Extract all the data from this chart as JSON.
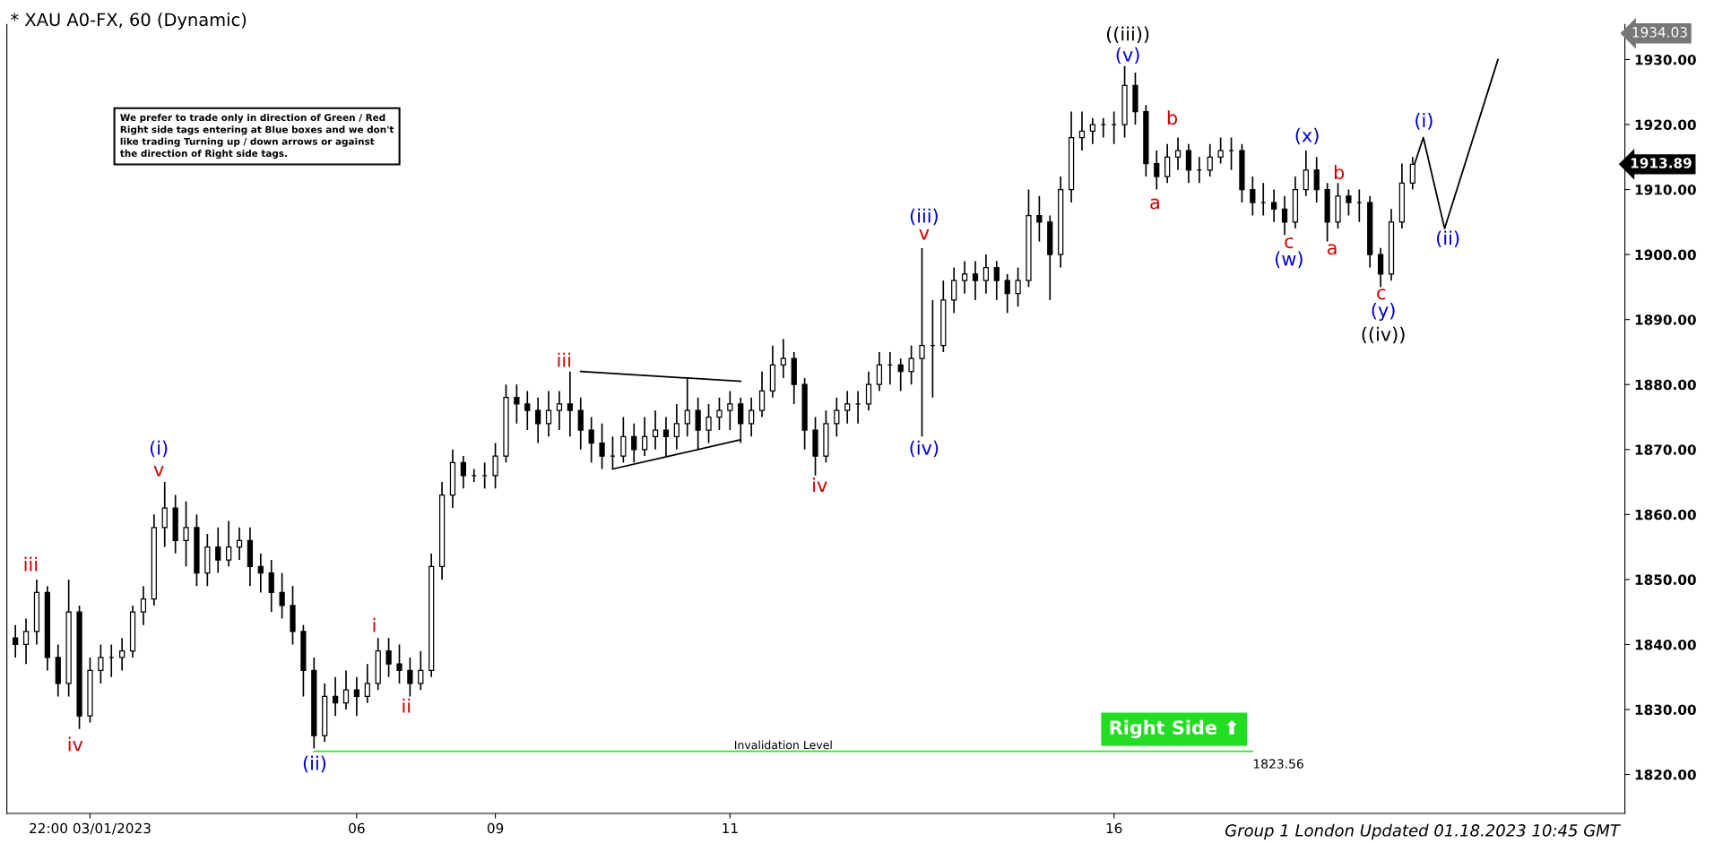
{
  "chart_data": {
    "type": "candlestick",
    "title": "* XAU A0-FX, 60 (Dynamic)",
    "categories": [
      null,
      null,
      null,
      null,
      null,
      null,
      null,
      "22:00 03/01/2023",
      null,
      null,
      null,
      null,
      null,
      null,
      null,
      null,
      null,
      null,
      null,
      null,
      null,
      null,
      null,
      null,
      null,
      null,
      null,
      null,
      null,
      null,
      null,
      null,
      "06",
      null,
      null,
      null,
      null,
      null,
      null,
      null,
      null,
      null,
      null,
      null,
      null,
      "09",
      null,
      null,
      null,
      null,
      null,
      null,
      null,
      null,
      null,
      null,
      null,
      null,
      null,
      null,
      null,
      null,
      null,
      null,
      null,
      null,
      null,
      "11",
      null,
      null,
      null,
      null,
      null,
      null,
      null,
      null,
      null,
      null,
      null,
      null,
      null,
      null,
      null,
      null,
      null,
      null,
      null,
      null,
      null,
      null,
      null,
      null,
      null,
      null,
      null,
      null,
      null,
      null,
      null,
      null,
      null,
      null,
      null,
      "16",
      null,
      null,
      null,
      null,
      null,
      null,
      null,
      null,
      null,
      null,
      null,
      null,
      null,
      null,
      null,
      null,
      null,
      null,
      null,
      null,
      null,
      null,
      null,
      null,
      null,
      null,
      null,
      null,
      null,
      null,
      null,
      null,
      null,
      null,
      null,
      null,
      null,
      null,
      null,
      null,
      null,
      null,
      null,
      null,
      null,
      null,
      null
    ],
    "ohlc": [
      [
        1841,
        1843,
        1838,
        1840
      ],
      [
        1840,
        1844,
        1837,
        1842
      ],
      [
        1842,
        1850,
        1840,
        1848
      ],
      [
        1848,
        1849,
        1836,
        1838
      ],
      [
        1838,
        1840,
        1832,
        1834
      ],
      [
        1834,
        1850,
        1832,
        1845
      ],
      [
        1845,
        1846,
        1827,
        1829
      ],
      [
        1829,
        1838,
        1828,
        1836
      ],
      [
        1836,
        1840,
        1834,
        1838
      ],
      [
        1838,
        1840,
        1835,
        1838
      ],
      [
        1838,
        1841,
        1836,
        1839
      ],
      [
        1839,
        1846,
        1838,
        1845
      ],
      [
        1845,
        1849,
        1843,
        1847
      ],
      [
        1847,
        1860,
        1846,
        1858
      ],
      [
        1858,
        1865,
        1855,
        1861
      ],
      [
        1861,
        1863,
        1854,
        1856
      ],
      [
        1856,
        1862,
        1852,
        1858
      ],
      [
        1858,
        1860,
        1849,
        1851
      ],
      [
        1851,
        1857,
        1849,
        1855
      ],
      [
        1855,
        1858,
        1851,
        1853
      ],
      [
        1853,
        1859,
        1852,
        1855
      ],
      [
        1855,
        1858,
        1853,
        1856
      ],
      [
        1856,
        1858,
        1849,
        1852
      ],
      [
        1852,
        1854,
        1848,
        1851
      ],
      [
        1851,
        1853,
        1845,
        1848
      ],
      [
        1848,
        1851,
        1844,
        1846
      ],
      [
        1846,
        1849,
        1840,
        1842
      ],
      [
        1842,
        1843,
        1832,
        1836
      ],
      [
        1836,
        1838,
        1824,
        1826
      ],
      [
        1826,
        1834,
        1825,
        1832
      ],
      [
        1832,
        1835,
        1829,
        1831
      ],
      [
        1831,
        1836,
        1830,
        1833
      ],
      [
        1833,
        1835,
        1829,
        1832
      ],
      [
        1832,
        1837,
        1831,
        1834
      ],
      [
        1834,
        1841,
        1833,
        1839
      ],
      [
        1839,
        1841,
        1835,
        1837
      ],
      [
        1837,
        1840,
        1834,
        1836
      ],
      [
        1836,
        1838,
        1832,
        1834
      ],
      [
        1834,
        1839,
        1833,
        1836
      ],
      [
        1836,
        1854,
        1835,
        1852
      ],
      [
        1852,
        1865,
        1850,
        1863
      ],
      [
        1863,
        1870,
        1861,
        1868
      ],
      [
        1868,
        1869,
        1864,
        1866
      ],
      [
        1866,
        1867,
        1865,
        1866
      ],
      [
        1866,
        1868,
        1864,
        1866
      ],
      [
        1866,
        1871,
        1864,
        1869
      ],
      [
        1869,
        1880,
        1868,
        1878
      ],
      [
        1878,
        1880,
        1874,
        1877
      ],
      [
        1877,
        1879,
        1873,
        1876
      ],
      [
        1876,
        1878,
        1871,
        1874
      ],
      [
        1874,
        1879,
        1872,
        1876
      ],
      [
        1876,
        1879,
        1873,
        1877
      ],
      [
        1877,
        1882,
        1872,
        1876
      ],
      [
        1876,
        1878,
        1870,
        1873
      ],
      [
        1873,
        1875,
        1868,
        1871
      ],
      [
        1871,
        1874,
        1867,
        1869
      ],
      [
        1869,
        1872,
        1867,
        1869
      ],
      [
        1869,
        1875,
        1868,
        1872
      ],
      [
        1872,
        1874,
        1868,
        1870
      ],
      [
        1870,
        1875,
        1869,
        1872
      ],
      [
        1872,
        1876,
        1870,
        1873
      ],
      [
        1873,
        1875,
        1869,
        1872
      ],
      [
        1872,
        1877,
        1870,
        1874
      ],
      [
        1874,
        1881,
        1872,
        1876
      ],
      [
        1876,
        1878,
        1870,
        1873
      ],
      [
        1873,
        1877,
        1871,
        1875
      ],
      [
        1875,
        1878,
        1873,
        1876
      ],
      [
        1876,
        1879,
        1873,
        1877
      ],
      [
        1877,
        1878,
        1871,
        1874
      ],
      [
        1874,
        1878,
        1872,
        1876
      ],
      [
        1876,
        1882,
        1875,
        1879
      ],
      [
        1879,
        1886,
        1878,
        1883
      ],
      [
        1883,
        1887,
        1881,
        1884
      ],
      [
        1884,
        1885,
        1877,
        1880
      ],
      [
        1880,
        1881,
        1870,
        1873
      ],
      [
        1873,
        1875,
        1866,
        1869
      ],
      [
        1869,
        1876,
        1868,
        1874
      ],
      [
        1874,
        1878,
        1872,
        1876
      ],
      [
        1876,
        1879,
        1874,
        1877
      ],
      [
        1877,
        1879,
        1874,
        1877
      ],
      [
        1877,
        1882,
        1876,
        1880
      ],
      [
        1880,
        1885,
        1879,
        1883
      ],
      [
        1883,
        1885,
        1880,
        1883
      ],
      [
        1883,
        1884,
        1879,
        1882
      ],
      [
        1882,
        1886,
        1880,
        1884
      ],
      [
        1884,
        1901,
        1872,
        1886
      ],
      [
        1886,
        1893,
        1878,
        1886
      ],
      [
        1886,
        1896,
        1885,
        1893
      ],
      [
        1893,
        1898,
        1891,
        1896
      ],
      [
        1896,
        1899,
        1894,
        1897
      ],
      [
        1897,
        1899,
        1893,
        1896
      ],
      [
        1896,
        1900,
        1894,
        1898
      ],
      [
        1898,
        1899,
        1893,
        1896
      ],
      [
        1896,
        1897,
        1891,
        1894
      ],
      [
        1894,
        1898,
        1892,
        1896
      ],
      [
        1896,
        1910,
        1895,
        1906
      ],
      [
        1906,
        1909,
        1902,
        1905
      ],
      [
        1905,
        1906,
        1893,
        1900
      ],
      [
        1900,
        1912,
        1898,
        1910
      ],
      [
        1910,
        1922,
        1908,
        1918
      ],
      [
        1918,
        1922,
        1916,
        1919
      ],
      [
        1919,
        1921,
        1917,
        1920
      ],
      [
        1920,
        1921,
        1918,
        1920
      ],
      [
        1920,
        1922,
        1917,
        1920
      ],
      [
        1920,
        1929,
        1918,
        1926
      ],
      [
        1926,
        1928,
        1920,
        1922
      ],
      [
        1922,
        1923,
        1912,
        1914
      ],
      [
        1914,
        1916,
        1910,
        1912
      ],
      [
        1912,
        1917,
        1911,
        1915
      ],
      [
        1915,
        1918,
        1913,
        1916
      ],
      [
        1916,
        1917,
        1911,
        1913
      ],
      [
        1913,
        1915,
        1911,
        1913
      ],
      [
        1913,
        1917,
        1912,
        1915
      ],
      [
        1915,
        1918,
        1914,
        1916
      ],
      [
        1916,
        1918,
        1913,
        1916
      ],
      [
        1916,
        1917,
        1908,
        1910
      ],
      [
        1910,
        1912,
        1906,
        1908
      ],
      [
        1908,
        1911,
        1906,
        1908
      ],
      [
        1908,
        1910,
        1905,
        1907
      ],
      [
        1907,
        1909,
        1903,
        1905
      ],
      [
        1905,
        1912,
        1904,
        1910
      ],
      [
        1910,
        1916,
        1909,
        1913
      ],
      [
        1913,
        1915,
        1908,
        1910
      ],
      [
        1910,
        1911,
        1902,
        1905
      ],
      [
        1905,
        1911,
        1904,
        1909
      ],
      [
        1909,
        1910,
        1906,
        1908
      ],
      [
        1908,
        1910,
        1905,
        1908
      ],
      [
        1908,
        1909,
        1898,
        1900
      ],
      [
        1900,
        1901,
        1895,
        1897
      ],
      [
        1897,
        1907,
        1896,
        1905
      ],
      [
        1905,
        1914,
        1904,
        1911
      ],
      [
        1911,
        1915,
        1910,
        1913.89
      ],
      null,
      null,
      null,
      null,
      null,
      null,
      null,
      null,
      null,
      null,
      null,
      null,
      null,
      null,
      null,
      null,
      null,
      null,
      null
    ],
    "color": "#000000",
    "series": [
      {
        "type": "line",
        "color": "#000000",
        "values": [
          null,
          null,
          null,
          null,
          null,
          null,
          null,
          null,
          null,
          null,
          null,
          null,
          null,
          null,
          null,
          null,
          null,
          null,
          null,
          null,
          null,
          null,
          null,
          null,
          null,
          null,
          null,
          null,
          null,
          null,
          null,
          null,
          null,
          null,
          null,
          null,
          null,
          null,
          null,
          null,
          null,
          null,
          null,
          null,
          null,
          null,
          null,
          null,
          null,
          null,
          null,
          null,
          null,
          1882,
          null,
          null,
          null,
          null,
          null,
          null,
          null,
          null,
          null,
          null,
          null,
          null,
          null,
          null,
          1880.5,
          null,
          null,
          null,
          null,
          null,
          null,
          null,
          null,
          null,
          null,
          null,
          null,
          null,
          null,
          null,
          null,
          null,
          null,
          null,
          null,
          null,
          null,
          null,
          null,
          null,
          null,
          null,
          null,
          null,
          null,
          null,
          null,
          null,
          null,
          null,
          null,
          null,
          null,
          null,
          null,
          null,
          null,
          null,
          null,
          null,
          null,
          null,
          null,
          null,
          null,
          null,
          null,
          null,
          null,
          null,
          null,
          null,
          null,
          null,
          null,
          null,
          null,
          null,
          null,
          null,
          null,
          null,
          null,
          null,
          null,
          null,
          null,
          null,
          null,
          null,
          null,
          null,
          null,
          null,
          null,
          null,
          null
        ]
      },
      {
        "type": "line",
        "color": "#000000",
        "values": [
          null,
          null,
          null,
          null,
          null,
          null,
          null,
          null,
          null,
          null,
          null,
          null,
          null,
          null,
          null,
          null,
          null,
          null,
          null,
          null,
          null,
          null,
          null,
          null,
          null,
          null,
          null,
          null,
          null,
          null,
          null,
          null,
          null,
          null,
          null,
          null,
          null,
          null,
          null,
          null,
          null,
          null,
          null,
          null,
          null,
          null,
          null,
          null,
          null,
          null,
          null,
          null,
          null,
          null,
          null,
          null,
          1867,
          null,
          null,
          null,
          null,
          null,
          null,
          null,
          null,
          null,
          null,
          null,
          1871.5,
          null,
          null,
          null,
          null,
          null,
          null,
          null,
          null,
          null,
          null,
          null,
          null,
          null,
          null,
          null,
          null,
          null,
          null,
          null,
          null,
          null,
          null,
          null,
          null,
          null,
          null,
          null,
          null,
          null,
          null,
          null,
          null,
          null,
          null,
          null,
          null,
          null,
          null,
          null,
          null,
          null,
          null,
          null,
          null,
          null,
          null,
          null,
          null,
          null,
          null,
          null,
          null,
          null,
          null,
          null,
          null,
          null,
          null,
          null,
          null,
          null,
          null,
          null,
          null,
          null,
          null,
          null,
          null,
          null,
          null,
          null,
          null,
          null,
          null,
          null,
          null,
          null,
          null,
          null,
          null,
          null,
          null
        ]
      },
      {
        "type": "line",
        "color": "#000000",
        "values": [
          null,
          null,
          null,
          null,
          null,
          null,
          null,
          null,
          null,
          null,
          null,
          null,
          null,
          null,
          null,
          null,
          null,
          null,
          null,
          null,
          null,
          null,
          null,
          null,
          null,
          null,
          null,
          null,
          null,
          null,
          null,
          null,
          null,
          null,
          null,
          null,
          null,
          null,
          null,
          null,
          null,
          null,
          null,
          null,
          null,
          null,
          null,
          null,
          null,
          null,
          null,
          null,
          null,
          null,
          null,
          null,
          null,
          null,
          null,
          null,
          null,
          null,
          null,
          null,
          null,
          null,
          null,
          null,
          null,
          null,
          null,
          null,
          null,
          null,
          null,
          null,
          null,
          null,
          null,
          null,
          null,
          null,
          null,
          null,
          null,
          null,
          null,
          null,
          null,
          null,
          null,
          null,
          null,
          null,
          null,
          null,
          null,
          null,
          null,
          null,
          null,
          null,
          null,
          null,
          null,
          null,
          null,
          null,
          null,
          null,
          null,
          null,
          null,
          null,
          null,
          null,
          null,
          null,
          null,
          null,
          null,
          null,
          null,
          null,
          null,
          null,
          null,
          null,
          null,
          null,
          null,
          1913,
          1918,
          null,
          1904,
          null,
          null,
          null,
          null,
          1930,
          null,
          null,
          null,
          null,
          null,
          null,
          null,
          null,
          null,
          null,
          null
        ]
      },
      {
        "type": "line",
        "color": "#33dd33",
        "values": [
          null,
          null,
          null,
          null,
          null,
          null,
          null,
          null,
          null,
          null,
          null,
          null,
          null,
          null,
          null,
          null,
          null,
          null,
          null,
          null,
          null,
          null,
          null,
          null,
          null,
          null,
          null,
          null,
          1823.56,
          null,
          null,
          null,
          null,
          null,
          null,
          null,
          null,
          null,
          null,
          null,
          null,
          null,
          null,
          null,
          null,
          null,
          null,
          null,
          null,
          null,
          null,
          null,
          null,
          null,
          null,
          null,
          null,
          null,
          null,
          null,
          null,
          null,
          null,
          null,
          null,
          null,
          null,
          null,
          null,
          null,
          null,
          null,
          null,
          null,
          null,
          null,
          null,
          null,
          null,
          null,
          null,
          null,
          null,
          null,
          null,
          null,
          null,
          null,
          null,
          null,
          null,
          null,
          null,
          null,
          null,
          null,
          null,
          null,
          null,
          null,
          null,
          null,
          null,
          null,
          null,
          null,
          null,
          null,
          null,
          null,
          null,
          null,
          null,
          null,
          null,
          null,
          1823.56,
          null,
          null,
          null,
          null,
          null,
          null,
          null,
          null,
          null,
          null,
          null,
          null,
          null,
          null,
          null,
          null,
          null,
          null,
          null,
          null,
          null,
          null,
          null,
          null,
          null,
          null,
          null,
          null,
          null,
          null,
          null,
          null,
          null,
          null
        ]
      }
    ],
    "ylim": [
      1814,
      1935.4
    ],
    "yticks": [
      {
        "value": 1820,
        "label": "1820.00"
      },
      {
        "value": 1830,
        "label": "1830.00"
      },
      {
        "value": 1840,
        "label": "1840.00"
      },
      {
        "value": 1850,
        "label": "1850.00"
      },
      {
        "value": 1860,
        "label": "1860.00"
      },
      {
        "value": 1870,
        "label": "1870.00"
      },
      {
        "value": 1880,
        "label": "1880.00"
      },
      {
        "value": 1890,
        "label": "1890.00"
      },
      {
        "value": 1900,
        "label": "1900.00"
      },
      {
        "value": 1910,
        "label": "1910.00"
      },
      {
        "value": 1920,
        "label": "1920.00"
      },
      {
        "value": 1930,
        "label": "1930.00"
      }
    ],
    "annotations": [
      "We prefer to trade only in direction of Green / Red\nRight side tags entering at Blue boxes and we don't\nlike trading Turning up / down arrows or against\nthe direction of Right side tags.",
      "Group 1 London Updated 01.18.2023 10:45 GMT",
      "Right Side ⬆",
      "Invalidation Level",
      "1823.56",
      "1934.03",
      "1913.89",
      "iii",
      "iv",
      "(i)",
      "v",
      "(ii)",
      "i",
      "ii",
      "iii",
      "iv",
      "(iii)",
      "v",
      "(iv)",
      "((iii))",
      "(v)",
      "a",
      "b",
      "c",
      "(w)",
      "(x)",
      "a",
      "b",
      "c",
      "(y)",
      "((iv))",
      "(i)",
      "(ii)"
    ]
  }
}
